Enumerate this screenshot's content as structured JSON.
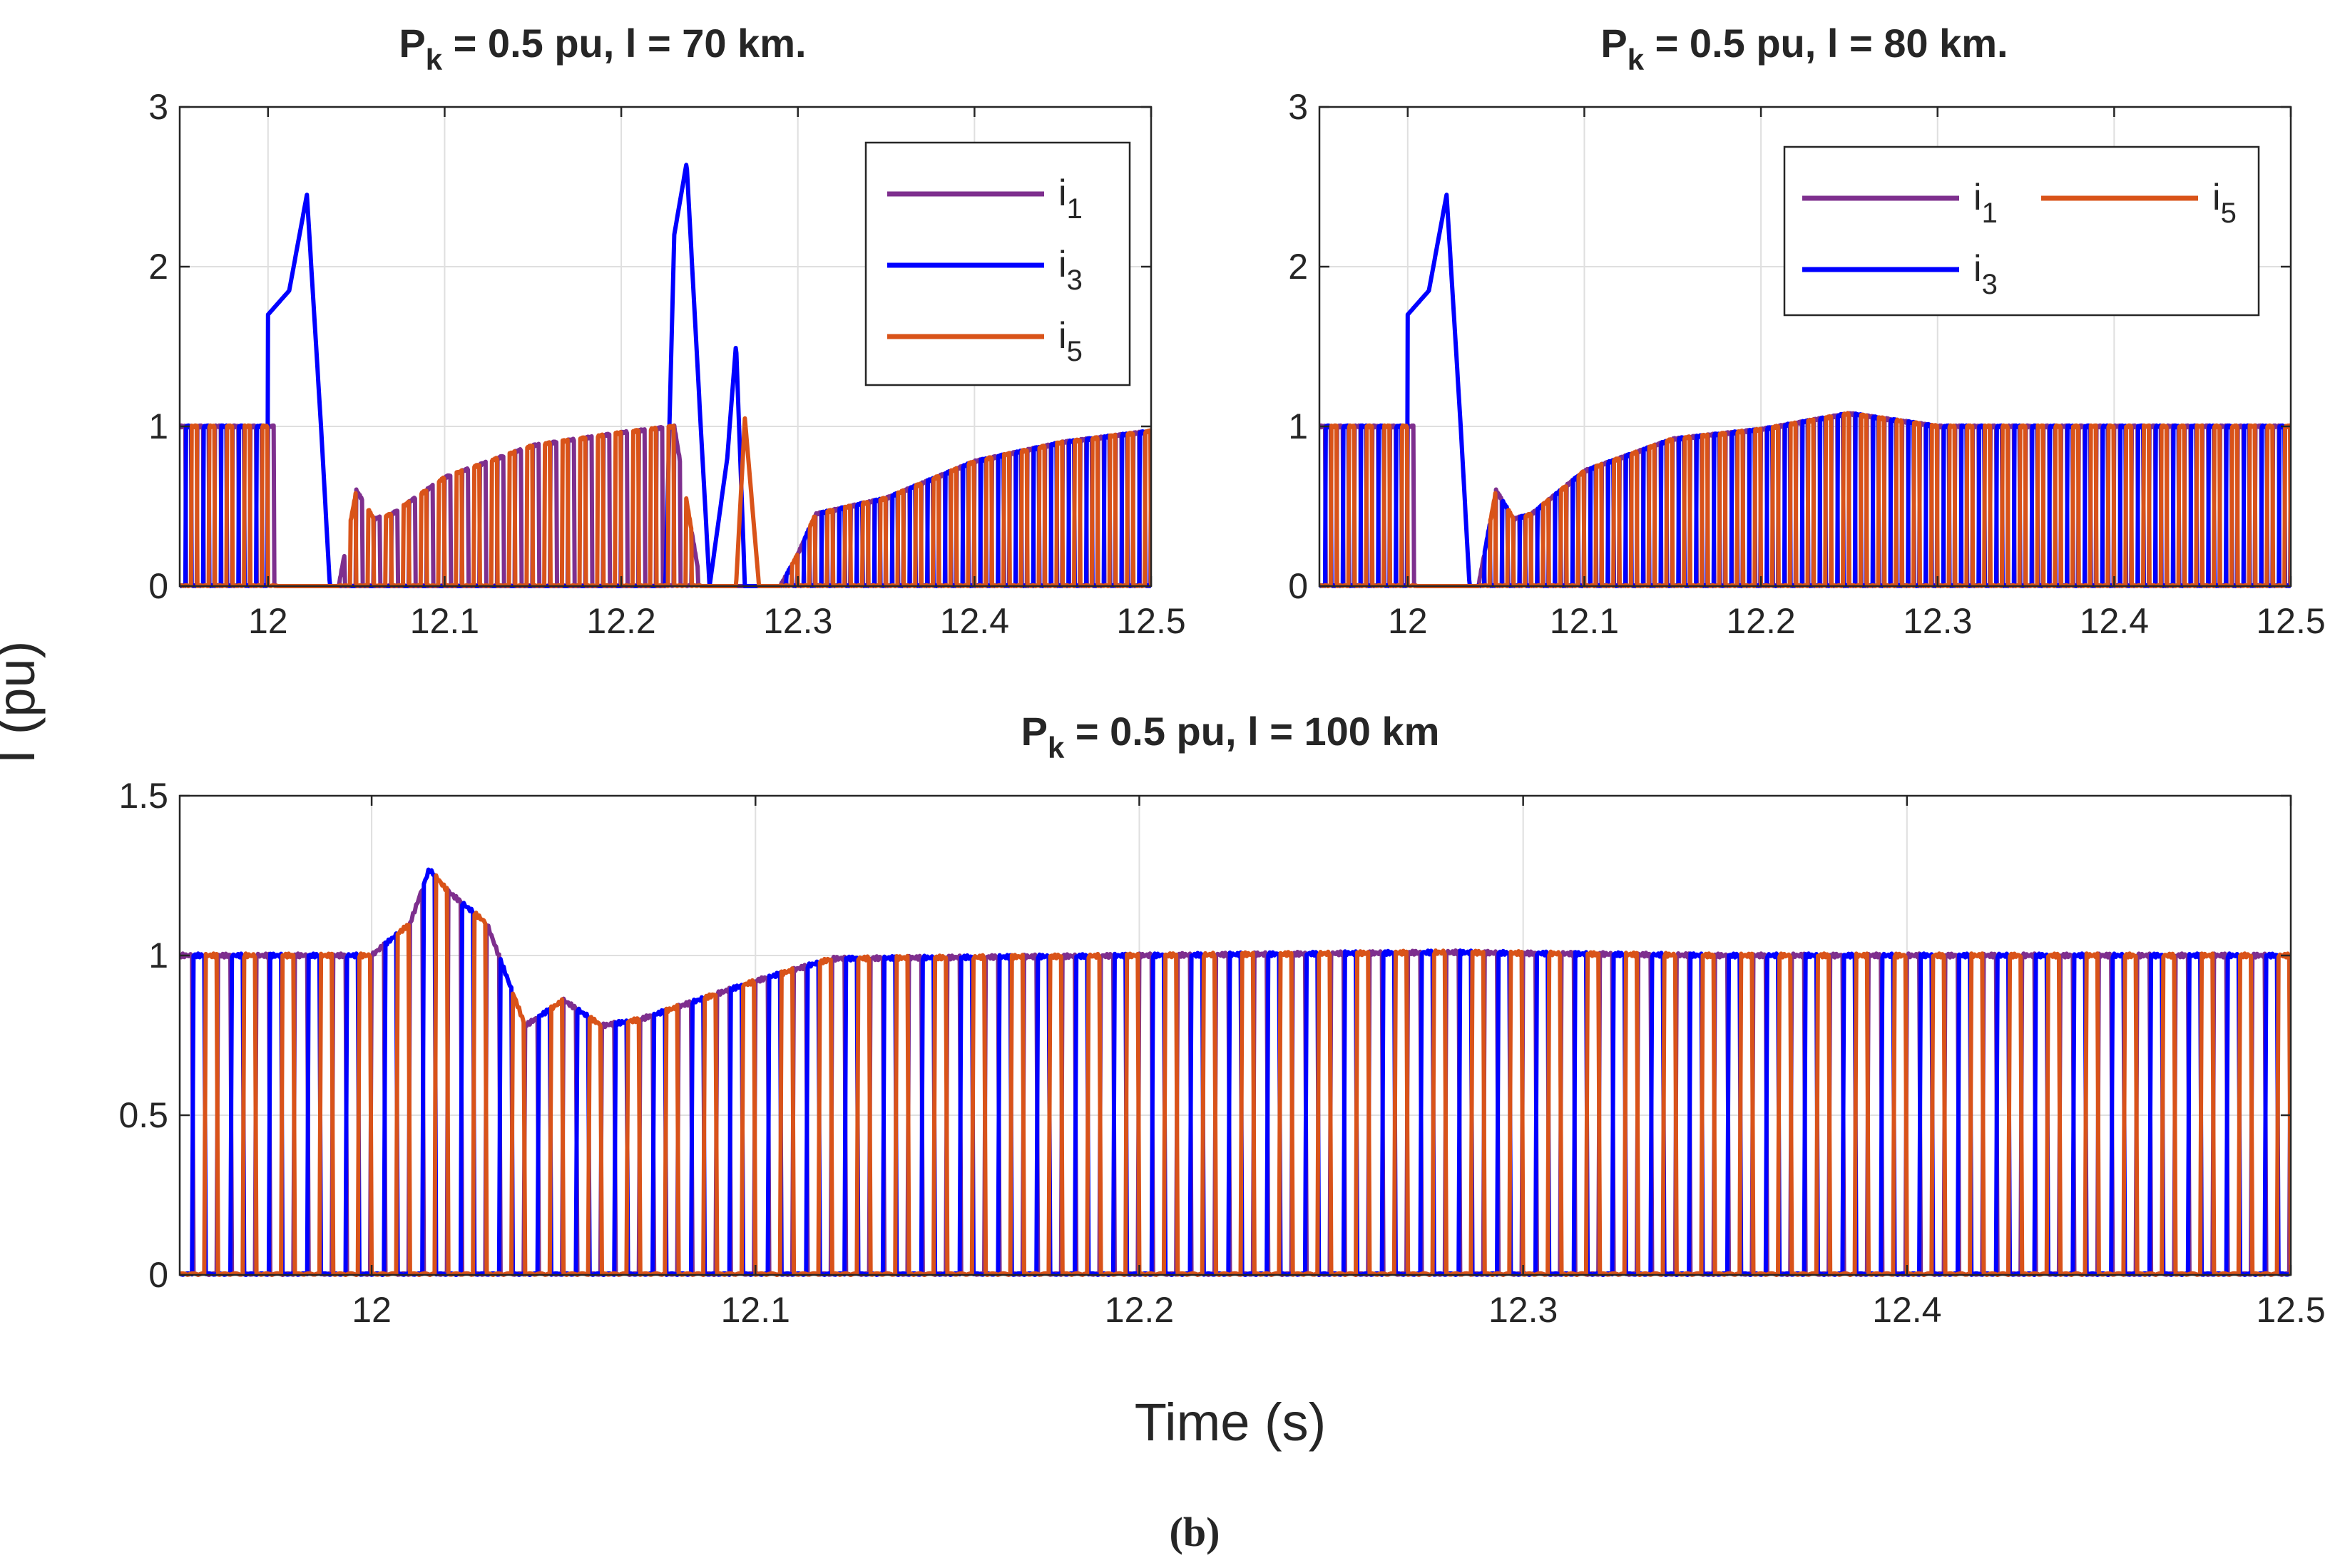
{
  "figure": {
    "ylabel": "I (pu)",
    "xlabel": "Time (s)",
    "caption": "(b)"
  },
  "colors": {
    "i1": "#7E2F8E",
    "i3": "#0000FF",
    "i5": "#D95319",
    "grid": "#dfdfdf",
    "axis": "#262626"
  },
  "chart_data": [
    {
      "type": "line",
      "title_main": "P",
      "title_sub": "k",
      "title_rest": " = 0.5 pu, l = 70 km.",
      "xlim": [
        11.95,
        12.5
      ],
      "ylim": [
        0,
        3
      ],
      "xticks": [
        12,
        12.1,
        12.2,
        12.3,
        12.4,
        12.5
      ],
      "xtick_labels": [
        "12",
        "12.1",
        "12.2",
        "12.3",
        "12.4",
        "12.5"
      ],
      "yticks": [
        0,
        1,
        2,
        3
      ],
      "ytick_labels": [
        "0",
        "1",
        "2",
        "3"
      ],
      "legend": {
        "position": "top-right",
        "layout": "vertical",
        "entries": [
          {
            "key": "i1",
            "label": "i",
            "sub": "1"
          },
          {
            "key": "i3",
            "label": "i",
            "sub": "3"
          },
          {
            "key": "i5",
            "label": "i",
            "sub": "5"
          }
        ]
      },
      "switching_period": 0.01,
      "envelope": [
        [
          11.95,
          1.0
        ],
        [
          12.005,
          1.0
        ],
        [
          12.01,
          0.0
        ],
        [
          12.04,
          0.0
        ],
        [
          12.05,
          0.6
        ],
        [
          12.06,
          0.42
        ],
        [
          12.07,
          0.45
        ],
        [
          12.1,
          0.68
        ],
        [
          12.15,
          0.88
        ],
        [
          12.2,
          0.96
        ],
        [
          12.23,
          1.0
        ],
        [
          12.245,
          0.0
        ],
        [
          12.29,
          0.0
        ],
        [
          12.3,
          0.2
        ],
        [
          12.31,
          0.45
        ],
        [
          12.35,
          0.55
        ],
        [
          12.4,
          0.78
        ],
        [
          12.45,
          0.9
        ],
        [
          12.5,
          0.97
        ]
      ],
      "dead_spans": [
        [
          12.005,
          12.04
        ],
        [
          12.245,
          12.29
        ]
      ],
      "series": [
        {
          "key": "i1",
          "phase": 0.0
        },
        {
          "key": "i3",
          "phase": 0.0033,
          "peaks": [
            [
              12.0,
              1.7
            ],
            [
              12.012,
              1.85
            ],
            [
              12.022,
              2.45
            ],
            [
              12.03,
              1.0
            ],
            [
              12.035,
              0.0
            ],
            [
              12.225,
              0.0
            ],
            [
              12.23,
              2.2
            ],
            [
              12.237,
              2.65
            ],
            [
              12.245,
              1.0
            ],
            [
              12.25,
              0.0
            ],
            [
              12.26,
              0.8
            ],
            [
              12.265,
              1.52
            ],
            [
              12.27,
              0.0
            ]
          ]
        },
        {
          "key": "i5",
          "phase": 0.0066,
          "peaks": [
            [
              12.265,
              0.0
            ],
            [
              12.27,
              1.05
            ],
            [
              12.278,
              0.0
            ]
          ]
        }
      ]
    },
    {
      "type": "line",
      "title_main": "P",
      "title_sub": "k",
      "title_rest": " = 0.5 pu, l = 80 km.",
      "xlim": [
        11.95,
        12.5
      ],
      "ylim": [
        0,
        3
      ],
      "xticks": [
        12,
        12.1,
        12.2,
        12.3,
        12.4,
        12.5
      ],
      "xtick_labels": [
        "12",
        "12.1",
        "12.2",
        "12.3",
        "12.4",
        "12.5"
      ],
      "yticks": [
        0,
        1,
        2,
        3
      ],
      "ytick_labels": [
        "0",
        "1",
        "2",
        "3"
      ],
      "legend": {
        "position": "top-right",
        "layout": "two-column",
        "entries": [
          {
            "key": "i1",
            "label": "i",
            "sub": "1"
          },
          {
            "key": "i5",
            "label": "i",
            "sub": "5"
          },
          {
            "key": "i3",
            "label": "i",
            "sub": "3"
          }
        ]
      },
      "switching_period": 0.01,
      "envelope": [
        [
          11.95,
          1.0
        ],
        [
          12.005,
          1.0
        ],
        [
          12.01,
          0.0
        ],
        [
          12.04,
          0.0
        ],
        [
          12.05,
          0.6
        ],
        [
          12.06,
          0.42
        ],
        [
          12.07,
          0.45
        ],
        [
          12.1,
          0.72
        ],
        [
          12.15,
          0.92
        ],
        [
          12.2,
          0.98
        ],
        [
          12.25,
          1.08
        ],
        [
          12.3,
          1.0
        ],
        [
          12.5,
          1.0
        ]
      ],
      "dead_spans": [
        [
          12.005,
          12.04
        ]
      ],
      "series": [
        {
          "key": "i1",
          "phase": 0.0
        },
        {
          "key": "i3",
          "phase": 0.0033,
          "peaks": [
            [
              12.0,
              1.7
            ],
            [
              12.012,
              1.85
            ],
            [
              12.022,
              2.45
            ],
            [
              12.03,
              1.0
            ],
            [
              12.035,
              0.0
            ]
          ]
        },
        {
          "key": "i5",
          "phase": 0.0066
        }
      ]
    },
    {
      "type": "line",
      "title_main": "P",
      "title_sub": "k",
      "title_rest": " = 0.5 pu, l = 100 km",
      "xlim": [
        11.95,
        12.5
      ],
      "ylim": [
        0,
        1.5
      ],
      "xticks": [
        12,
        12.1,
        12.2,
        12.3,
        12.4,
        12.5
      ],
      "xtick_labels": [
        "12",
        "12.1",
        "12.2",
        "12.3",
        "12.4",
        "12.5"
      ],
      "yticks": [
        0,
        0.5,
        1,
        1.5
      ],
      "ytick_labels": [
        "0",
        "0.5",
        "1",
        "1.5"
      ],
      "switching_period": 0.01,
      "envelope": [
        [
          11.95,
          1.0
        ],
        [
          12.0,
          1.0
        ],
        [
          12.01,
          1.1
        ],
        [
          12.015,
          1.27
        ],
        [
          12.02,
          1.2
        ],
        [
          12.03,
          1.1
        ],
        [
          12.04,
          0.78
        ],
        [
          12.05,
          0.86
        ],
        [
          12.06,
          0.78
        ],
        [
          12.07,
          0.8
        ],
        [
          12.1,
          0.92
        ],
        [
          12.12,
          0.99
        ],
        [
          12.2,
          1.0
        ],
        [
          12.28,
          1.01
        ],
        [
          12.35,
          1.0
        ],
        [
          12.5,
          1.0
        ]
      ],
      "dead_spans": [],
      "series": [
        {
          "key": "i1",
          "phase": 0.0
        },
        {
          "key": "i3",
          "phase": 0.0033
        },
        {
          "key": "i5",
          "phase": 0.0066
        }
      ]
    }
  ]
}
